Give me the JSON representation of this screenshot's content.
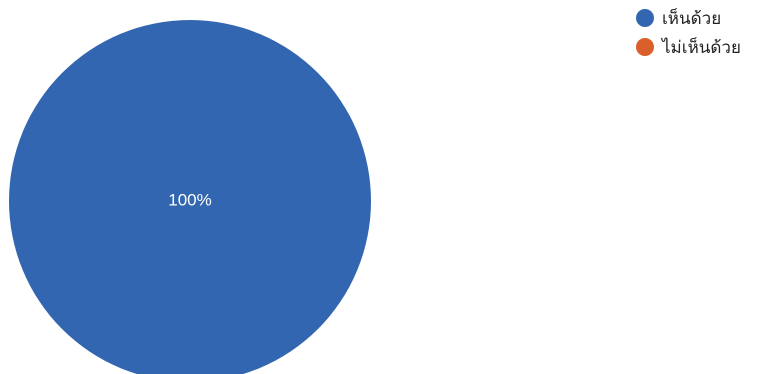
{
  "chart_data": {
    "type": "pie",
    "categories": [
      "เห็นด้วย",
      "ไม่เห็นด้วย"
    ],
    "values": [
      100,
      0
    ],
    "value_labels": [
      "100%",
      ""
    ],
    "colors": [
      "#3366b0",
      "#d95f2b"
    ],
    "legend_position": "top-right"
  }
}
